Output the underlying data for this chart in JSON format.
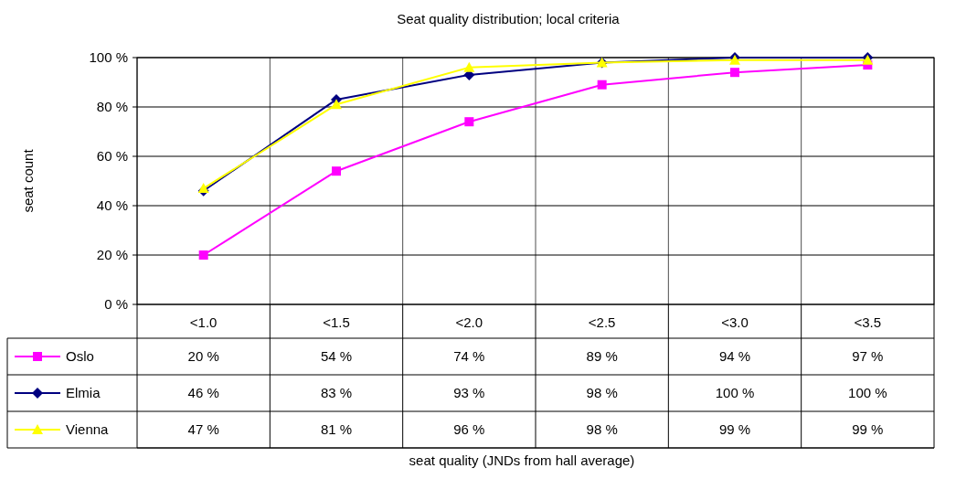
{
  "chart_data": {
    "type": "line",
    "title": "Seat quality distribution; local criteria",
    "annotations": [
      "seat quality (JNDs from hall average)"
    ],
    "ylabel": "seat count",
    "categories": [
      "<1.0",
      "<1.5",
      "<2.0",
      "<2.5",
      "<3.0",
      "<3.5"
    ],
    "series": [
      {
        "name": "Oslo",
        "color": "#ff00ff",
        "marker": "square",
        "values": [
          20,
          54,
          74,
          89,
          94,
          97
        ],
        "value_labels": [
          "20 %",
          "54 %",
          "74 %",
          "89 %",
          "94 %",
          "97 %"
        ]
      },
      {
        "name": "Elmia",
        "color": "#000080",
        "marker": "diamond",
        "values": [
          46,
          83,
          93,
          98,
          100,
          100
        ],
        "value_labels": [
          "46 %",
          "83 %",
          "93 %",
          "98 %",
          "100 %",
          "100 %"
        ]
      },
      {
        "name": "Vienna",
        "color": "#ffff00",
        "marker": "triangle",
        "values": [
          47,
          81,
          96,
          98,
          99,
          99
        ],
        "value_labels": [
          "47 %",
          "81 %",
          "96 %",
          "98 %",
          "99 %",
          "99 %"
        ]
      }
    ],
    "ylim": [
      0,
      100
    ],
    "yticks": [
      {
        "value": 0,
        "label": "0 %"
      },
      {
        "value": 20,
        "label": "20 %"
      },
      {
        "value": 40,
        "label": "40 %"
      },
      {
        "value": 60,
        "label": "60 %"
      },
      {
        "value": 80,
        "label": "80 %"
      },
      {
        "value": 100,
        "label": "100 %"
      }
    ],
    "grid": true,
    "legend": "bottom left",
    "line_style": "solid"
  }
}
